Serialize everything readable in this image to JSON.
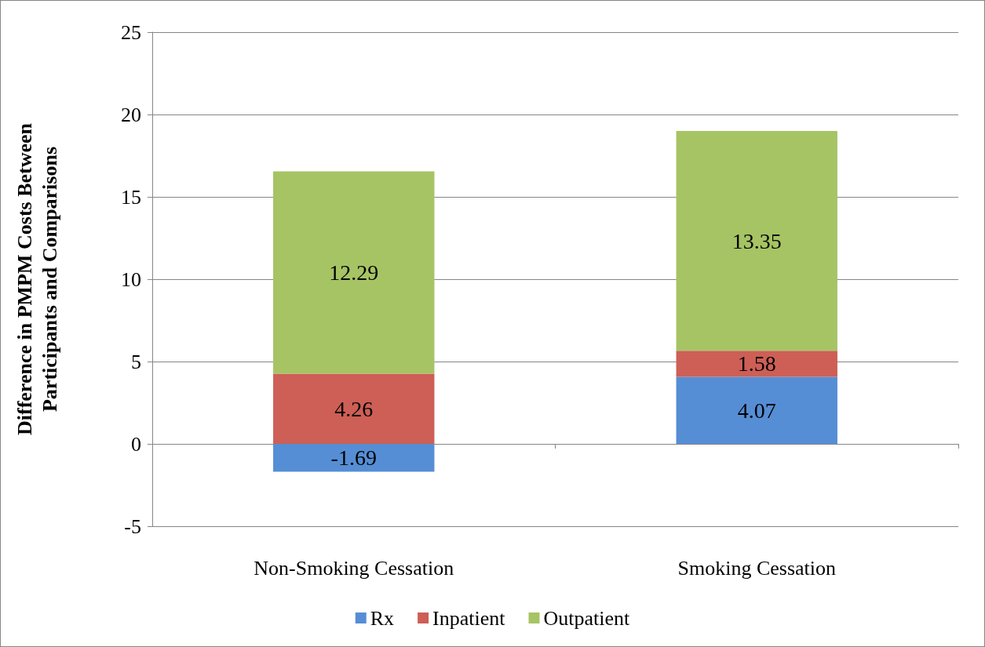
{
  "chart_data": {
    "type": "bar",
    "stacked": true,
    "ylabel": "Difference in PMPM Costs Between\nParticipants and Comparisons",
    "categories": [
      "Non-Smoking Cessation",
      "Smoking Cessation"
    ],
    "series": [
      {
        "name": "Rx",
        "color": "#558ed5",
        "values": [
          -1.69,
          4.07
        ]
      },
      {
        "name": "Inpatient",
        "color": "#cd5f56",
        "values": [
          4.26,
          1.58
        ]
      },
      {
        "name": "Outpatient",
        "color": "#a6c464",
        "values": [
          12.29,
          13.35
        ]
      }
    ],
    "ylim": [
      -5,
      25
    ],
    "yticks": [
      -5,
      0,
      5,
      10,
      15,
      20,
      25
    ],
    "grid": "y",
    "legend": "bottom",
    "data_labels": true
  }
}
